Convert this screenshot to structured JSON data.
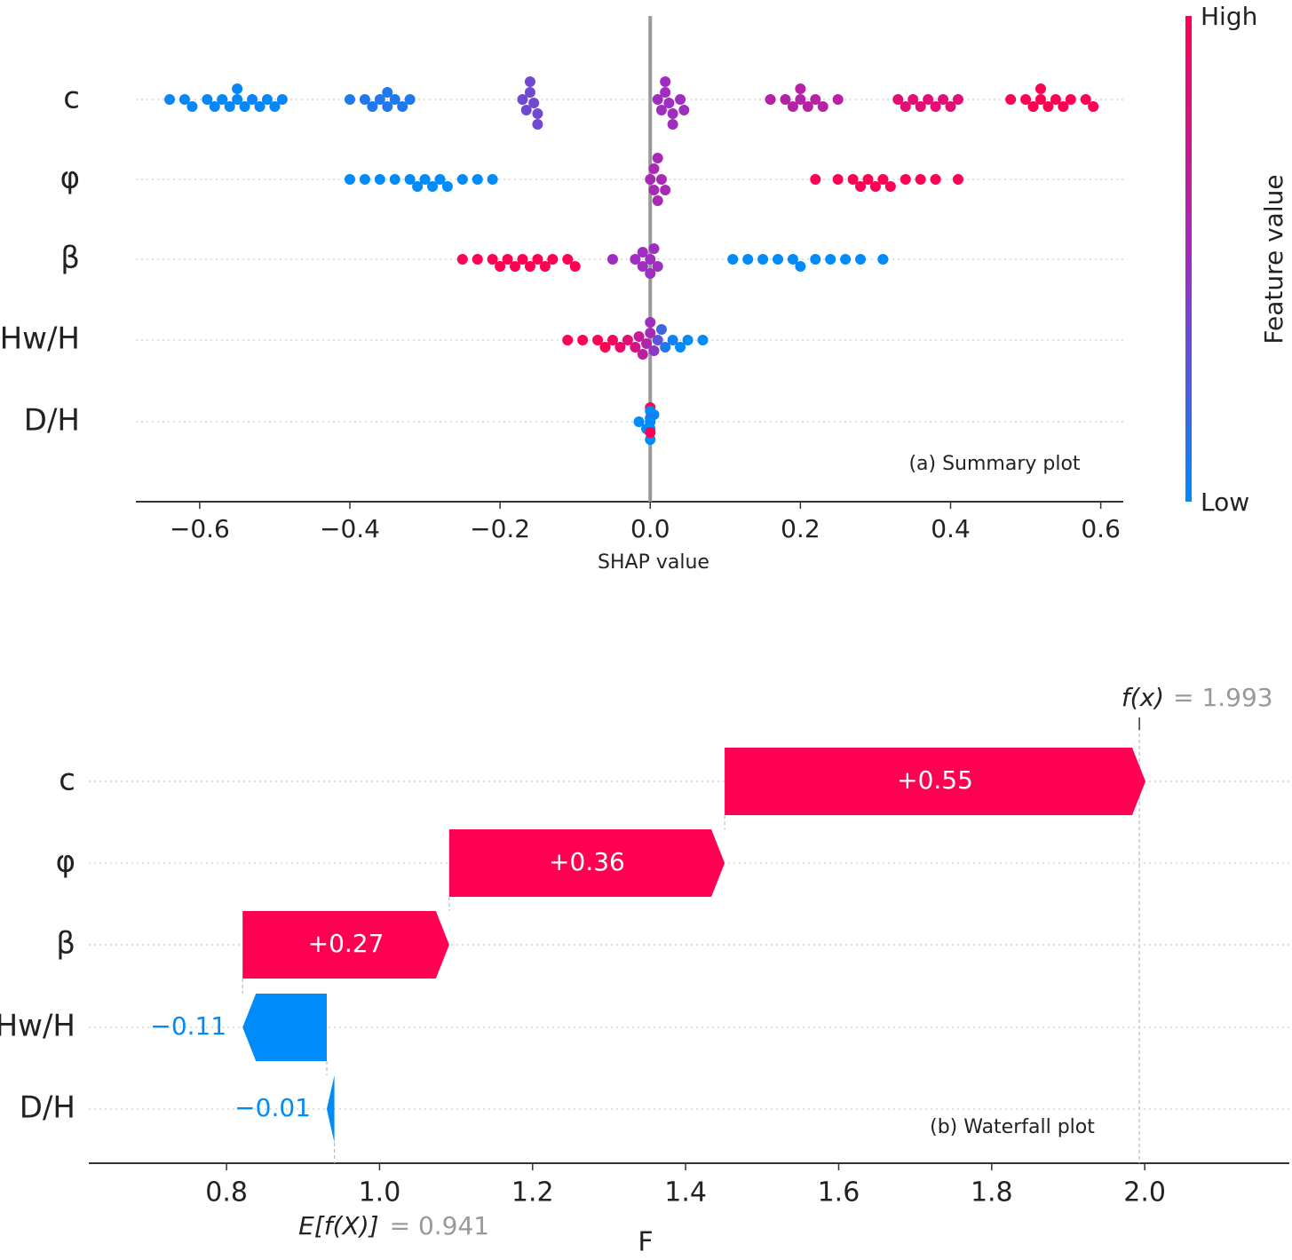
{
  "chart_data": [
    {
      "type": "beeswarm",
      "annotation": "(a) Summary plot",
      "xlabel": "SHAP value",
      "colorbar_label": "Feature value",
      "colorbar_high": "High",
      "colorbar_low": "Low",
      "colormap": [
        "#008bfb",
        "#9e2dc0",
        "#ff0052"
      ],
      "xlim": [
        -0.685,
        0.63
      ],
      "xticks": [
        {
          "value": -0.6,
          "label": "−0.6"
        },
        {
          "value": -0.4,
          "label": "−0.4"
        },
        {
          "value": -0.2,
          "label": "−0.2"
        },
        {
          "value": 0,
          "label": "0.0"
        },
        0.2,
        0.4,
        0.6
      ],
      "series": [
        {
          "name": "c",
          "values": [
            -0.64,
            -0.62,
            -0.61,
            -0.59,
            -0.58,
            -0.57,
            -0.56,
            -0.55,
            -0.55,
            -0.54,
            -0.53,
            -0.52,
            -0.51,
            -0.5,
            -0.49,
            -0.4,
            -0.38,
            -0.37,
            -0.36,
            -0.35,
            -0.35,
            -0.34,
            -0.33,
            -0.32,
            -0.17,
            -0.165,
            -0.16,
            -0.16,
            -0.155,
            -0.15,
            -0.15,
            0.01,
            0.015,
            0.02,
            0.02,
            0.025,
            0.03,
            0.03,
            0.04,
            0.045,
            0.16,
            0.18,
            0.19,
            0.2,
            0.2,
            0.21,
            0.22,
            0.23,
            0.25,
            0.33,
            0.34,
            0.35,
            0.36,
            0.37,
            0.38,
            0.39,
            0.4,
            0.41,
            0.48,
            0.5,
            0.51,
            0.52,
            0.52,
            0.53,
            0.54,
            0.55,
            0.56,
            0.58,
            0.59
          ],
          "feature_values": [
            0.02,
            0.02,
            0.02,
            0.02,
            0.02,
            0.02,
            0.02,
            0.02,
            0.02,
            0.02,
            0.02,
            0.02,
            0.02,
            0.02,
            0.02,
            0.1,
            0.1,
            0.1,
            0.1,
            0.1,
            0.1,
            0.1,
            0.1,
            0.1,
            0.35,
            0.35,
            0.35,
            0.35,
            0.35,
            0.35,
            0.35,
            0.5,
            0.5,
            0.5,
            0.5,
            0.5,
            0.5,
            0.5,
            0.5,
            0.5,
            0.62,
            0.62,
            0.62,
            0.62,
            0.62,
            0.62,
            0.62,
            0.62,
            0.62,
            0.85,
            0.85,
            0.85,
            0.85,
            0.85,
            0.85,
            0.85,
            0.85,
            0.85,
            1,
            1,
            1,
            1,
            1,
            1,
            1,
            1,
            1,
            1,
            1
          ]
        },
        {
          "name": "φ",
          "values": [
            -0.4,
            -0.38,
            -0.36,
            -0.34,
            -0.32,
            -0.31,
            -0.3,
            -0.29,
            -0.28,
            -0.27,
            -0.25,
            -0.23,
            -0.21,
            0.0,
            0.005,
            0.005,
            0.01,
            0.01,
            0.015,
            0.02,
            0.22,
            0.25,
            0.27,
            0.28,
            0.29,
            0.3,
            0.31,
            0.32,
            0.34,
            0.36,
            0.38,
            0.41
          ],
          "feature_values": [
            0,
            0,
            0,
            0,
            0,
            0,
            0,
            0,
            0,
            0,
            0,
            0,
            0,
            0.55,
            0.55,
            0.55,
            0.55,
            0.55,
            0.55,
            0.55,
            1,
            1,
            1,
            1,
            1,
            1,
            1,
            1,
            1,
            1,
            1,
            1
          ]
        },
        {
          "name": "β",
          "values": [
            -0.25,
            -0.23,
            -0.21,
            -0.2,
            -0.19,
            -0.18,
            -0.17,
            -0.16,
            -0.15,
            -0.14,
            -0.13,
            -0.11,
            -0.1,
            -0.05,
            -0.02,
            -0.01,
            -0.01,
            0.0,
            0.0,
            0.005,
            0.01,
            0.11,
            0.13,
            0.15,
            0.17,
            0.19,
            0.2,
            0.22,
            0.24,
            0.26,
            0.28,
            0.31
          ],
          "feature_values": [
            1,
            1,
            1,
            1,
            1,
            1,
            1,
            1,
            1,
            1,
            1,
            1,
            1,
            0.5,
            0.5,
            0.5,
            0.5,
            0.5,
            0.5,
            0.5,
            0.5,
            0,
            0,
            0,
            0,
            0,
            0,
            0,
            0,
            0,
            0,
            0
          ]
        },
        {
          "name": "Hw/H",
          "values": [
            -0.11,
            -0.09,
            -0.07,
            -0.06,
            -0.05,
            -0.04,
            -0.03,
            -0.02,
            -0.015,
            -0.01,
            -0.005,
            0.0,
            0.0,
            0.005,
            0.01,
            0.015,
            0.02,
            0.03,
            0.04,
            0.05,
            0.07
          ],
          "feature_values": [
            1,
            1,
            1,
            1,
            0.95,
            0.9,
            0.85,
            0.8,
            0.7,
            0.65,
            0.6,
            0.55,
            0.5,
            0.45,
            0.3,
            0.2,
            0.1,
            0.05,
            0,
            0,
            0
          ]
        },
        {
          "name": "D/H",
          "values": [
            -0.015,
            -0.005,
            0.0,
            0.0,
            0.0,
            0.0,
            0.0,
            0.0,
            0.005,
            0.0,
            0.0
          ],
          "feature_values": [
            0,
            0,
            0,
            1,
            0,
            0,
            1,
            0,
            0,
            0.1,
            0
          ]
        }
      ]
    },
    {
      "type": "waterfall",
      "annotation": "(b) Waterfall plot",
      "xlabel": "F",
      "categories": [
        "c",
        "φ",
        "β",
        "Hw/H",
        "D/H"
      ],
      "values": [
        0.55,
        0.36,
        0.27,
        -0.11,
        -0.01
      ],
      "value_labels": [
        "+0.55",
        "+0.36",
        "+0.27",
        "−0.11",
        "−0.01"
      ],
      "positive_color": "#ff0052",
      "negative_color": "#008bfb",
      "base_label": "E[f(X)]",
      "base_value": 0.941,
      "base_value_label": "= 0.941",
      "output_label": "f(x)",
      "output_value": 1.993,
      "output_value_label": "= 1.993",
      "xlim": [
        0.62,
        2.189
      ],
      "xticks": [
        0.8,
        {
          "value": 1,
          "label": "1.0"
        },
        1.2,
        1.4,
        1.6,
        1.8,
        {
          "value": 2,
          "label": "2.0"
        }
      ]
    }
  ]
}
